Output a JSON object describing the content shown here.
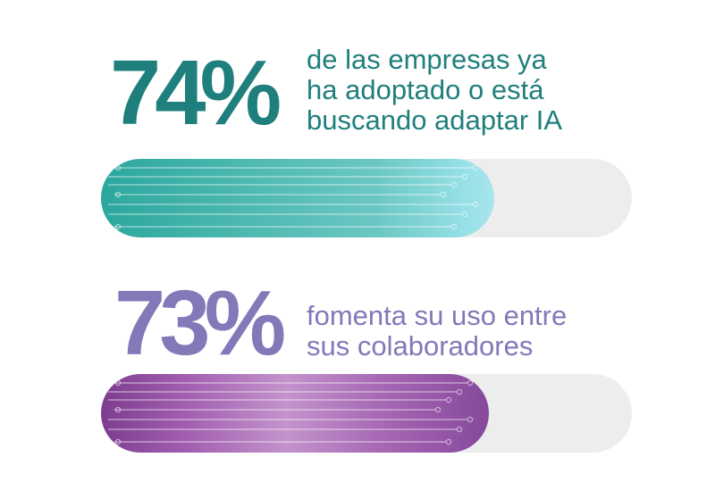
{
  "colors": {
    "teal": "#1f7f7c",
    "purple": "#8378b8",
    "track": "#ededed"
  },
  "chart_data": {
    "type": "bar",
    "orientation": "horizontal",
    "ylim": [
      0,
      100
    ],
    "categories": [
      "de las empresas ya ha adoptado o está buscando adaptar IA",
      "fomenta su uso entre sus colaboradores"
    ],
    "values": [
      74,
      73
    ],
    "data_labels": [
      "74%",
      "73%"
    ],
    "desc_lines": [
      [
        "de las empresas ya",
        "ha adoptado o está",
        "buscando adaptar IA"
      ],
      [
        "fomenta su uso entre",
        "sus colaboradores"
      ]
    ]
  }
}
